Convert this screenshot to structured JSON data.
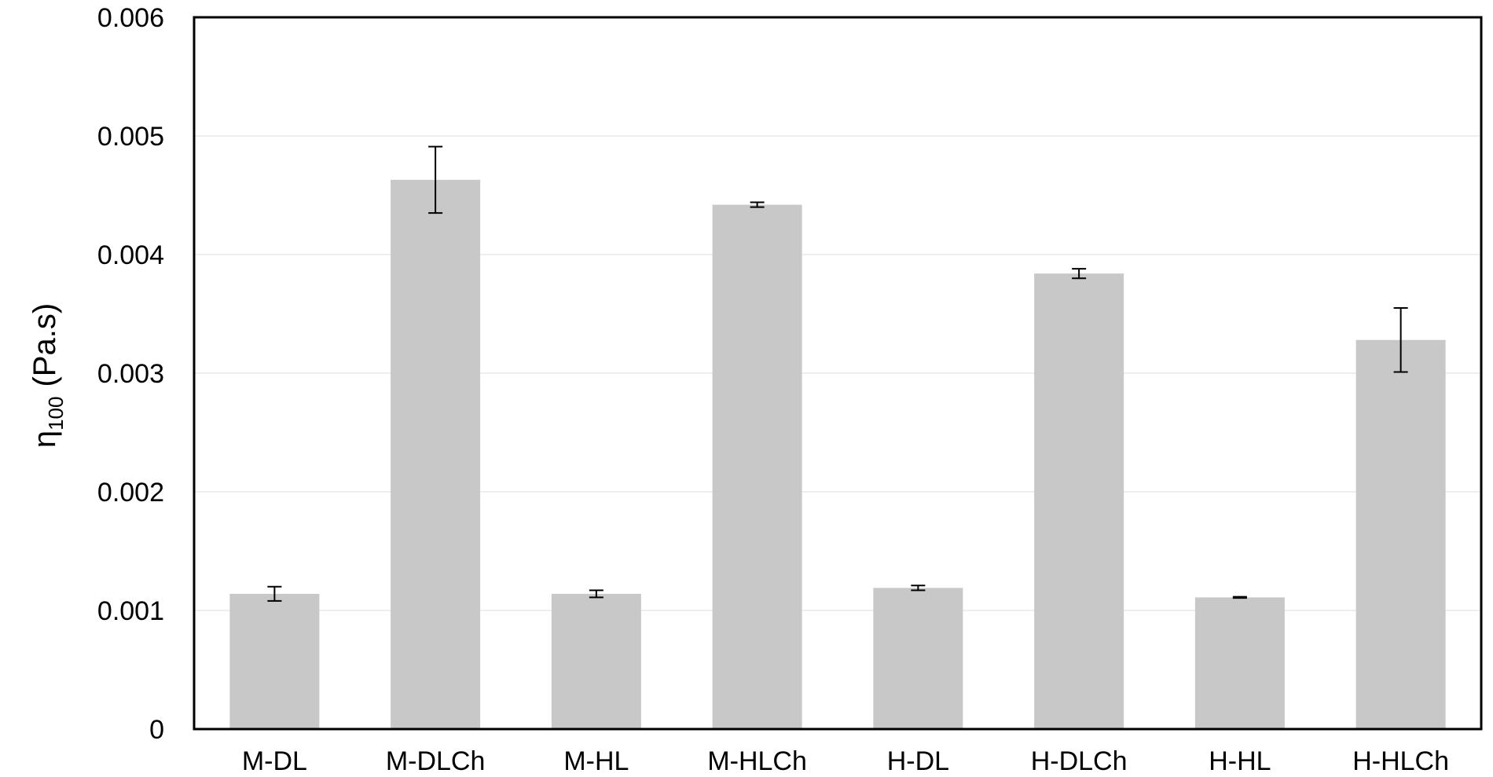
{
  "chart_data": {
    "type": "bar",
    "categories": [
      "M-DL",
      "M-DLCh",
      "M-HL",
      "M-HLCh",
      "H-DL",
      "H-DLCh",
      "H-HL",
      "H-HLCh"
    ],
    "values": [
      0.00114,
      0.00463,
      0.00114,
      0.00442,
      0.00119,
      0.00384,
      0.00111,
      0.00328
    ],
    "errors": [
      6e-05,
      0.00028,
      3e-05,
      2e-05,
      2e-05,
      4e-05,
      5e-06,
      0.00027
    ],
    "title": "",
    "xlabel": "",
    "ylabel": {
      "main": "η",
      "sub": "100",
      "unit": "(Pa.s)"
    },
    "ylim": [
      0,
      0.006
    ],
    "yticks": [
      0,
      0.001,
      0.002,
      0.003,
      0.004,
      0.005,
      0.006
    ],
    "ytick_labels": [
      "0",
      "0.001",
      "0.002",
      "0.003",
      "0.004",
      "0.005",
      "0.006"
    ],
    "grid": true,
    "legend": "none",
    "colors": {
      "bar": "#c8c8c8",
      "grid": "#e8e8e8",
      "axis": "#000000",
      "error": "#000000"
    }
  }
}
